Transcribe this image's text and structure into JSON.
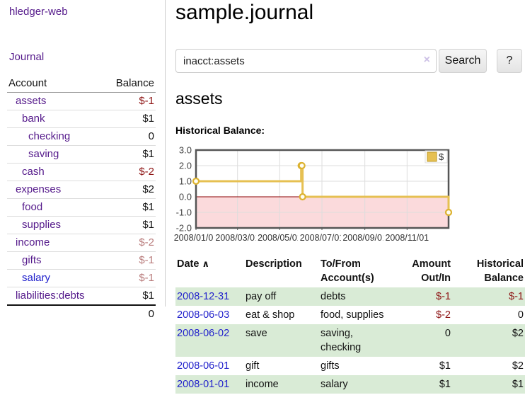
{
  "sidebar": {
    "app_title": "hledger-web",
    "nav": {
      "journal_label": "Journal"
    },
    "accounts_table": {
      "headers": {
        "account": "Account",
        "balance": "Balance"
      },
      "rows": [
        {
          "name": "assets",
          "indent": 1,
          "bold": true,
          "balance": "$-1",
          "balance_style": "neg-strong",
          "link_style": "purple"
        },
        {
          "name": "bank",
          "indent": 2,
          "bold": true,
          "balance": "$1",
          "balance_style": "",
          "link_style": "purple"
        },
        {
          "name": "checking",
          "indent": 3,
          "bold": true,
          "balance": "0",
          "balance_style": "",
          "link_style": "purple"
        },
        {
          "name": "saving",
          "indent": 3,
          "bold": true,
          "balance": "$1",
          "balance_style": "",
          "link_style": "purple"
        },
        {
          "name": "cash",
          "indent": 2,
          "bold": true,
          "balance": "$-2",
          "balance_style": "neg-strong",
          "link_style": "purple"
        },
        {
          "name": "expenses",
          "indent": 1,
          "bold": false,
          "balance": "$2",
          "balance_style": "",
          "link_style": "purple"
        },
        {
          "name": "food",
          "indent": 2,
          "bold": false,
          "balance": "$1",
          "balance_style": "",
          "link_style": "purple"
        },
        {
          "name": "supplies",
          "indent": 2,
          "bold": false,
          "balance": "$1",
          "balance_style": "",
          "link_style": "purple"
        },
        {
          "name": "income",
          "indent": 1,
          "bold": false,
          "balance": "$-2",
          "balance_style": "neg-light",
          "link_style": "purple"
        },
        {
          "name": "gifts",
          "indent": 2,
          "bold": false,
          "balance": "$-1",
          "balance_style": "neg-light",
          "link_style": "purple"
        },
        {
          "name": "salary",
          "indent": 2,
          "bold": false,
          "balance": "$-1",
          "balance_style": "neg-light",
          "link_style": "blue"
        },
        {
          "name": "liabilities:debts",
          "indent": 1,
          "bold": false,
          "balance": "$1",
          "balance_style": "",
          "link_style": "purple"
        }
      ],
      "total": "0"
    }
  },
  "header": {
    "title": "sample.journal"
  },
  "search": {
    "value": "inacct:assets",
    "clear_label": "×",
    "button_label": "Search",
    "help_label": "?"
  },
  "account_page": {
    "title": "assets",
    "chart_label": "Historical Balance:"
  },
  "chart_data": {
    "type": "line",
    "title": "Historical Balance:",
    "series": [
      {
        "name": "$",
        "color": "#e6c052",
        "step": true,
        "points": [
          [
            "2008-01-01",
            1
          ],
          [
            "2008-06-01",
            2
          ],
          [
            "2008-06-02",
            2
          ],
          [
            "2008-06-03",
            0
          ],
          [
            "2008-12-31",
            -1
          ]
        ]
      }
    ],
    "x_range": [
      "2008-01-01",
      "2008-12-31"
    ],
    "ylim": [
      -2,
      3
    ],
    "ytick_values": [
      3,
      2,
      1,
      0,
      -1,
      -2
    ],
    "yticks": [
      "3.0",
      "2.0",
      "1.0",
      "0.0",
      "-1.0",
      "-2.0"
    ],
    "xtick_dates": [
      "2008-01-01",
      "2008-03-01",
      "2008-05-01",
      "2008-07-01",
      "2008-09-01",
      "2008-11-01"
    ],
    "xticks": [
      "2008/01/01",
      "2008/03/01",
      "2008/05/01",
      "2008/07/01",
      "2008/09/01",
      "2008/11/01"
    ],
    "grid": true,
    "legend_position": "top-right",
    "negative_region_color": "#fbdadc",
    "zero_line_color": "#8b0000"
  },
  "register": {
    "headers": {
      "date": "Date",
      "sort_icon": "∧",
      "description": "Description",
      "accounts": "To/From Account(s)",
      "amount": "Amount Out/In",
      "balance": "Historical Balance"
    },
    "rows": [
      {
        "date": "2008-12-31",
        "description": "pay off",
        "accounts": "debts",
        "amount": "$-1",
        "amount_neg": true,
        "balance": "$-1",
        "balance_neg": true,
        "shaded": true
      },
      {
        "date": "2008-06-03",
        "description": "eat & shop",
        "accounts": "food, supplies",
        "amount": "$-2",
        "amount_neg": true,
        "balance": "0",
        "balance_neg": false,
        "shaded": false
      },
      {
        "date": "2008-06-02",
        "description": "save",
        "accounts": "saving, checking",
        "amount": "0",
        "amount_neg": false,
        "balance": "$2",
        "balance_neg": false,
        "shaded": true
      },
      {
        "date": "2008-06-01",
        "description": "gift",
        "accounts": "gifts",
        "amount": "$1",
        "amount_neg": false,
        "balance": "$2",
        "balance_neg": false,
        "shaded": false
      },
      {
        "date": "2008-01-01",
        "description": "income",
        "accounts": "salary",
        "amount": "$1",
        "amount_neg": false,
        "balance": "$1",
        "balance_neg": false,
        "shaded": true
      }
    ]
  }
}
